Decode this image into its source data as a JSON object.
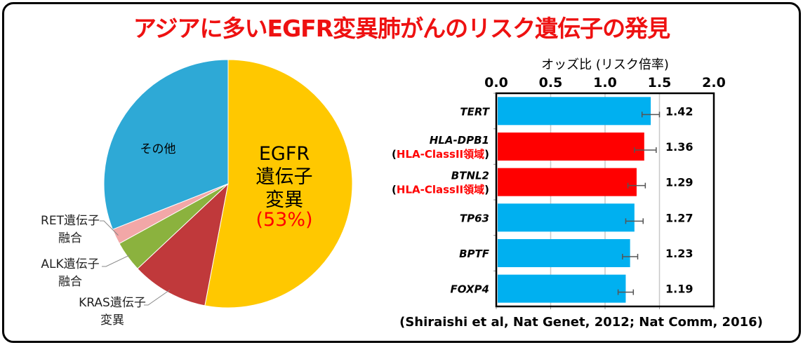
{
  "title": "アジアに多いEGFR変異肺がんのリスク遺伝子の発見",
  "chart_data": [
    {
      "type": "pie",
      "slices": [
        {
          "label_lines": [
            "EGFR",
            "遺伝子",
            "変異"
          ],
          "percent_label": "(53%)",
          "value": 53,
          "color": "#ffc800"
        },
        {
          "label_lines": [
            "KRAS遺伝子",
            "変異"
          ],
          "value": 10,
          "color": "#c0393b"
        },
        {
          "label_lines": [
            "ALK遺伝子",
            "融合"
          ],
          "value": 4,
          "color": "#8bb23e"
        },
        {
          "label_lines": [
            "RET遺伝子",
            "融合"
          ],
          "value": 2,
          "color": "#f2a7a7"
        },
        {
          "label_lines": [
            "その他"
          ],
          "value": 31,
          "color": "#2ea9d6"
        }
      ],
      "percent_color": "#ff0000"
    },
    {
      "type": "bar",
      "orientation": "horizontal",
      "xlabel": "オッズ比 (リスク倍率)",
      "xlim": [
        0,
        2.0
      ],
      "xticks": [
        "0.0",
        "0.5",
        "1.0",
        "1.5",
        "2.0"
      ],
      "grid": true,
      "categories": [
        {
          "name": "TERT",
          "sub": ""
        },
        {
          "name": "HLA-DPB1",
          "sub": "HLA-ClassII領域"
        },
        {
          "name": "BTNL2",
          "sub": "HLA-ClassII領域"
        },
        {
          "name": "TP63",
          "sub": ""
        },
        {
          "name": "BPTF",
          "sub": ""
        },
        {
          "name": "FOXP4",
          "sub": ""
        }
      ],
      "values": [
        1.42,
        1.36,
        1.29,
        1.27,
        1.23,
        1.19
      ],
      "value_labels": [
        "1.42",
        "1.36",
        "1.29",
        "1.27",
        "1.23",
        "1.19"
      ],
      "ci_low": [
        1.34,
        1.27,
        1.21,
        1.19,
        1.16,
        1.12
      ],
      "ci_high": [
        1.5,
        1.47,
        1.37,
        1.35,
        1.3,
        1.26
      ],
      "colors": [
        "#00b0f0",
        "#ff0000",
        "#ff0000",
        "#00b0f0",
        "#00b0f0",
        "#00b0f0"
      ],
      "citation": "(Shiraishi et al, Nat Genet, 2012;  Nat Comm, 2016)"
    }
  ]
}
